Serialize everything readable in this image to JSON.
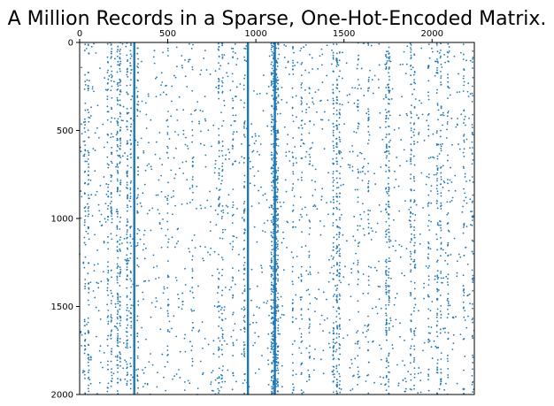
{
  "chart_data": {
    "type": "scatter",
    "title": "A Million Records in a Sparse, One-Hot-Encoded Matrix.",
    "xlabel": "",
    "ylabel": "",
    "x_ticks": [
      "0",
      "500",
      "1000",
      "1500",
      "2000"
    ],
    "y_ticks": [
      "0",
      "500",
      "1000",
      "1500",
      "2000"
    ],
    "xlim": [
      0,
      2240
    ],
    "ylim": [
      2000,
      0
    ],
    "x_axis_position": "top",
    "grid": false,
    "marker_color": "#1f77b4",
    "solid_columns": [
      310,
      955,
      1108
    ],
    "dense_columns": [
      {
        "x": 30,
        "weight": 0.5
      },
      {
        "x": 50,
        "weight": 0.6
      },
      {
        "x": 160,
        "weight": 0.5
      },
      {
        "x": 180,
        "weight": 0.6
      },
      {
        "x": 215,
        "weight": 0.9
      },
      {
        "x": 230,
        "weight": 0.7
      },
      {
        "x": 270,
        "weight": 0.8
      },
      {
        "x": 290,
        "weight": 0.6
      },
      {
        "x": 330,
        "weight": 0.5
      },
      {
        "x": 500,
        "weight": 0.3
      },
      {
        "x": 640,
        "weight": 0.3
      },
      {
        "x": 790,
        "weight": 0.5
      },
      {
        "x": 810,
        "weight": 0.4
      },
      {
        "x": 870,
        "weight": 0.4
      },
      {
        "x": 935,
        "weight": 0.6
      },
      {
        "x": 1090,
        "weight": 1.0
      },
      {
        "x": 1100,
        "weight": 1.0
      },
      {
        "x": 1115,
        "weight": 1.0
      },
      {
        "x": 1125,
        "weight": 0.9
      },
      {
        "x": 1210,
        "weight": 0.4
      },
      {
        "x": 1260,
        "weight": 0.4
      },
      {
        "x": 1305,
        "weight": 0.3
      },
      {
        "x": 1440,
        "weight": 0.7
      },
      {
        "x": 1460,
        "weight": 0.9
      },
      {
        "x": 1475,
        "weight": 0.6
      },
      {
        "x": 1580,
        "weight": 0.4
      },
      {
        "x": 1640,
        "weight": 0.4
      },
      {
        "x": 1740,
        "weight": 0.7
      },
      {
        "x": 1755,
        "weight": 0.8
      },
      {
        "x": 1880,
        "weight": 0.6
      },
      {
        "x": 1900,
        "weight": 0.5
      },
      {
        "x": 1980,
        "weight": 0.4
      },
      {
        "x": 2030,
        "weight": 0.6
      },
      {
        "x": 2050,
        "weight": 0.5
      },
      {
        "x": 2090,
        "weight": 0.4
      },
      {
        "x": 2180,
        "weight": 0.4
      },
      {
        "x": 2230,
        "weight": 0.5
      }
    ]
  }
}
